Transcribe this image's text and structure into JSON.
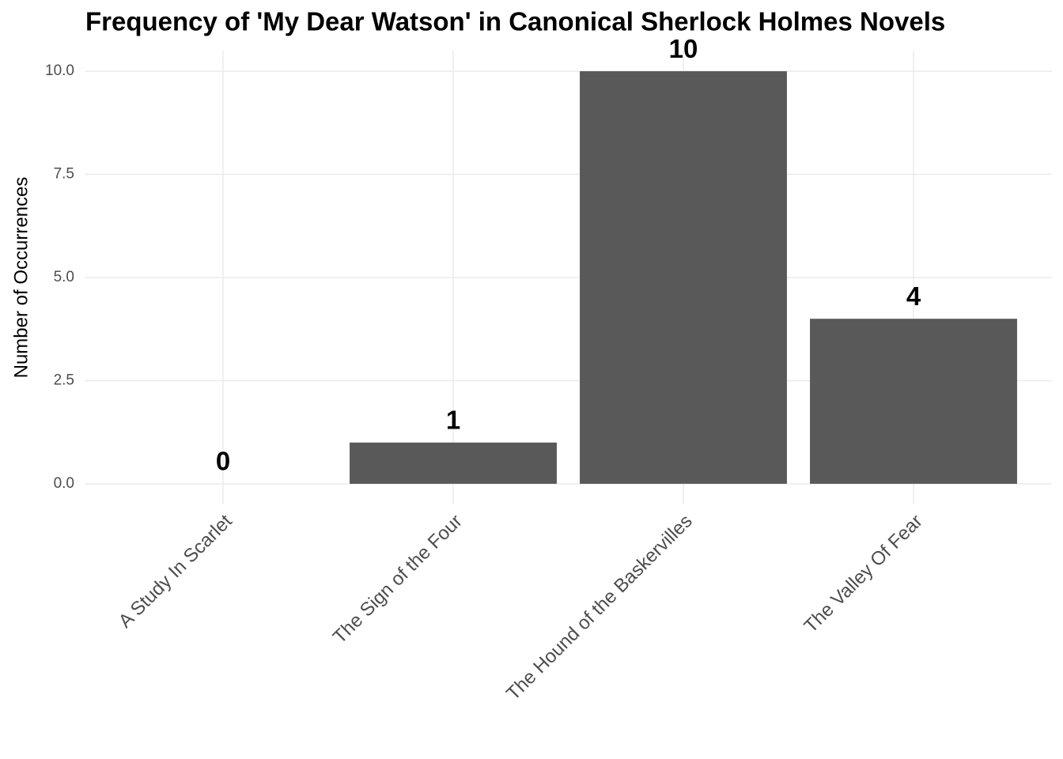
{
  "chart_data": {
    "type": "bar",
    "title": "Frequency of 'My Dear Watson' in Canonical Sherlock Holmes Novels",
    "y_label": "Number of Occurrences",
    "categories": [
      "A Study In Scarlet",
      "The Sign of the Four",
      "The Hound of the Baskervilles",
      "The Valley Of Fear"
    ],
    "values": [
      0,
      1,
      10,
      4
    ],
    "color": "#595959",
    "ylim": [
      -0.5,
      10.5
    ],
    "yticks": [
      {
        "value": 0,
        "label": "0.0"
      },
      2.5,
      {
        "value": 5,
        "label": "5.0"
      },
      7.5,
      {
        "value": 10,
        "label": "10.0"
      }
    ],
    "grid": true
  }
}
